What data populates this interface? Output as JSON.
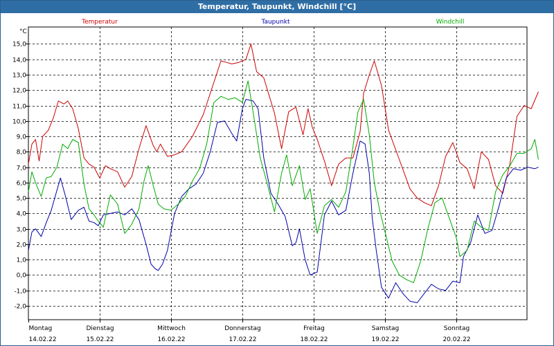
{
  "window": {
    "title": "Temperatur, Taupunkt, Windchill [°C]"
  },
  "chart_data": {
    "type": "line",
    "title": "Temperatur, Taupunkt, Windchill [°C]",
    "ylabel": "°C",
    "ylim": [
      -2.9,
      16.1
    ],
    "yticks": [
      -2.0,
      -1.0,
      0.0,
      1.0,
      2.0,
      3.0,
      4.0,
      5.0,
      6.0,
      7.0,
      8.0,
      9.0,
      10.0,
      11.0,
      12.0,
      13.0,
      14.0,
      15.0
    ],
    "yticklabels": [
      "-2,0",
      "-1,0",
      "0,0",
      "1,0",
      "2,0",
      "3,0",
      "4,0",
      "5,0",
      "6,0",
      "7,0",
      "8,0",
      "9,0",
      "10,0",
      "11,0",
      "12,0",
      "13,0",
      "14,0",
      "15,0"
    ],
    "xlim": [
      0,
      7.15
    ],
    "day_labels": [
      {
        "day": "Montag",
        "date": "14.02.22"
      },
      {
        "day": "Dienstag",
        "date": "15.02.22"
      },
      {
        "day": "Mittwoch",
        "date": "16.02.22"
      },
      {
        "day": "Donnerstag",
        "date": "17.02.22"
      },
      {
        "day": "Freitag",
        "date": "18.02.22"
      },
      {
        "day": "Samstag",
        "date": "19.02.22"
      },
      {
        "day": "Sonntag",
        "date": "20.02.22"
      }
    ],
    "grid": true,
    "legend_position": "top",
    "series": [
      {
        "name": "Temperatur",
        "color": "#cc0000",
        "x": [
          0.0,
          0.05,
          0.1,
          0.15,
          0.2,
          0.28,
          0.35,
          0.42,
          0.5,
          0.55,
          0.62,
          0.7,
          0.78,
          0.85,
          0.92,
          1.0,
          1.08,
          1.15,
          1.25,
          1.35,
          1.45,
          1.55,
          1.65,
          1.75,
          1.8,
          1.85,
          1.95,
          2.05,
          2.15,
          2.3,
          2.45,
          2.6,
          2.7,
          2.78,
          2.85,
          2.95,
          3.05,
          3.12,
          3.2,
          3.3,
          3.45,
          3.55,
          3.65,
          3.75,
          3.85,
          3.92,
          3.98,
          4.05,
          4.15,
          4.25,
          4.35,
          4.45,
          4.55,
          4.65,
          4.7,
          4.78,
          4.85,
          4.95,
          5.05,
          5.2,
          5.35,
          5.45,
          5.55,
          5.65,
          5.75,
          5.85,
          5.95,
          6.05,
          6.15,
          6.25,
          6.35,
          6.45,
          6.55,
          6.65,
          6.75,
          6.85,
          6.95,
          7.05,
          7.15
        ],
        "values": [
          7.2,
          8.5,
          8.8,
          7.4,
          9.0,
          9.4,
          10.2,
          11.3,
          11.1,
          11.3,
          10.8,
          9.5,
          7.6,
          7.2,
          7.0,
          6.3,
          7.1,
          6.9,
          6.7,
          5.7,
          6.4,
          8.2,
          9.7,
          8.4,
          8.0,
          8.5,
          7.7,
          7.8,
          8.0,
          9.0,
          10.4,
          12.5,
          13.9,
          13.8,
          13.7,
          13.8,
          14.0,
          15.0,
          13.2,
          12.8,
          10.5,
          8.2,
          10.6,
          10.9,
          9.1,
          10.8,
          9.6,
          8.8,
          7.4,
          5.8,
          7.2,
          7.6,
          7.6,
          9.3,
          11.8,
          13.0,
          13.9,
          12.3,
          9.4,
          7.5,
          5.6,
          5.0,
          4.7,
          4.5,
          5.8,
          7.7,
          8.6,
          7.3,
          6.9,
          5.6,
          8.0,
          7.5,
          5.8,
          5.3,
          7.2,
          10.3,
          11.0,
          10.8,
          11.9
        ]
      },
      {
        "name": "Taupunkt",
        "color": "#0000aa",
        "x": [
          0.0,
          0.05,
          0.1,
          0.18,
          0.25,
          0.32,
          0.4,
          0.45,
          0.52,
          0.6,
          0.7,
          0.78,
          0.85,
          0.92,
          0.98,
          1.05,
          1.15,
          1.25,
          1.35,
          1.45,
          1.55,
          1.65,
          1.72,
          1.78,
          1.82,
          1.88,
          1.95,
          2.05,
          2.15,
          2.25,
          2.35,
          2.45,
          2.55,
          2.65,
          2.75,
          2.85,
          2.92,
          3.0,
          3.05,
          3.15,
          3.22,
          3.3,
          3.4,
          3.5,
          3.6,
          3.7,
          3.75,
          3.8,
          3.88,
          3.95,
          4.05,
          4.15,
          4.25,
          4.35,
          4.45,
          4.55,
          4.65,
          4.72,
          4.78,
          4.82,
          4.88,
          4.95,
          5.05,
          5.15,
          5.25,
          5.35,
          5.45,
          5.55,
          5.65,
          5.75,
          5.85,
          5.95,
          6.05,
          6.1,
          6.2,
          6.3,
          6.4,
          6.5,
          6.6,
          6.7,
          6.8,
          6.9,
          7.0,
          7.1,
          7.15
        ],
        "values": [
          1.6,
          2.8,
          3.0,
          2.5,
          3.4,
          4.2,
          5.5,
          6.3,
          5.1,
          3.6,
          4.2,
          4.4,
          3.5,
          3.4,
          3.2,
          3.9,
          4.0,
          4.1,
          3.9,
          4.3,
          3.6,
          2.0,
          0.7,
          0.4,
          0.3,
          0.7,
          1.6,
          4.0,
          5.1,
          5.6,
          5.9,
          6.6,
          8.0,
          9.9,
          10.0,
          9.2,
          8.7,
          10.8,
          11.4,
          11.3,
          10.8,
          7.6,
          5.3,
          4.6,
          3.8,
          1.9,
          2.1,
          3.0,
          1.0,
          0.0,
          0.2,
          3.9,
          4.8,
          3.9,
          4.2,
          6.6,
          8.7,
          8.5,
          6.6,
          3.7,
          1.5,
          -0.8,
          -1.5,
          -0.5,
          -1.2,
          -1.7,
          -1.8,
          -1.2,
          -0.6,
          -0.9,
          -1.0,
          -0.4,
          -0.5,
          1.2,
          2.1,
          3.9,
          2.7,
          2.9,
          4.5,
          6.3,
          6.9,
          6.8,
          7.0,
          6.9,
          7.0
        ]
      },
      {
        "name": "Windchill",
        "color": "#00aa00",
        "x": [
          0.0,
          0.05,
          0.1,
          0.18,
          0.25,
          0.32,
          0.4,
          0.48,
          0.55,
          0.62,
          0.7,
          0.78,
          0.85,
          0.92,
          0.98,
          1.05,
          1.15,
          1.25,
          1.35,
          1.45,
          1.55,
          1.62,
          1.68,
          1.75,
          1.82,
          1.9,
          2.0,
          2.1,
          2.2,
          2.3,
          2.4,
          2.5,
          2.6,
          2.7,
          2.8,
          2.9,
          3.0,
          3.08,
          3.15,
          3.25,
          3.35,
          3.45,
          3.55,
          3.62,
          3.7,
          3.8,
          3.88,
          3.95,
          4.05,
          4.15,
          4.25,
          4.35,
          4.45,
          4.55,
          4.62,
          4.7,
          4.78,
          4.85,
          4.92,
          5.0,
          5.1,
          5.2,
          5.3,
          5.4,
          5.5,
          5.6,
          5.7,
          5.8,
          5.9,
          6.0,
          6.05,
          6.15,
          6.25,
          6.35,
          6.45,
          6.55,
          6.65,
          6.75,
          6.85,
          6.95,
          7.05,
          7.1,
          7.15
        ],
        "values": [
          5.4,
          6.7,
          6.0,
          5.1,
          6.3,
          6.4,
          7.0,
          8.5,
          8.2,
          8.8,
          8.6,
          5.9,
          4.3,
          3.9,
          3.5,
          3.1,
          5.2,
          4.6,
          2.7,
          3.3,
          4.3,
          6.1,
          7.1,
          5.8,
          4.6,
          4.3,
          4.2,
          4.6,
          5.1,
          6.1,
          6.9,
          8.5,
          11.2,
          11.6,
          11.4,
          11.5,
          11.2,
          12.6,
          10.6,
          7.6,
          5.9,
          4.1,
          6.6,
          7.8,
          5.8,
          7.1,
          4.9,
          5.6,
          2.7,
          4.5,
          4.9,
          4.4,
          5.4,
          8.3,
          10.6,
          11.4,
          9.1,
          6.0,
          4.3,
          2.8,
          0.9,
          0.0,
          -0.3,
          -0.5,
          0.9,
          3.0,
          4.7,
          5.0,
          3.7,
          2.4,
          1.2,
          1.6,
          3.5,
          3.1,
          2.9,
          5.4,
          6.5,
          7.1,
          7.9,
          7.9,
          8.2,
          8.8,
          7.5
        ]
      }
    ]
  }
}
